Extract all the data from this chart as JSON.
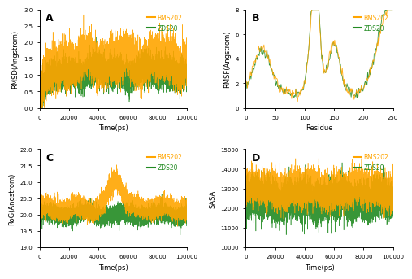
{
  "panel_labels": [
    "A",
    "B",
    "C",
    "D"
  ],
  "colors": {
    "BMS202": "#FFA500",
    "ZDS20": "#228B22"
  },
  "line_alpha": 0.9,
  "panel_A": {
    "xlabel": "Time(ps)",
    "ylabel": "RMSD(Angstrom)",
    "xlim": [
      0,
      100000
    ],
    "ylim": [
      0,
      3
    ],
    "yticks": [
      0,
      0.5,
      1.0,
      1.5,
      2.0,
      2.5,
      3.0
    ],
    "xticks": [
      0,
      20000,
      40000,
      60000,
      80000,
      100000
    ],
    "bms202_mean": 1.45,
    "bms202_std": 0.38,
    "zds20_mean": 1.1,
    "zds20_std": 0.28
  },
  "panel_B": {
    "xlabel": "Residue",
    "ylabel": "RMSF(Angstrom)",
    "xlim": [
      0,
      250
    ],
    "ylim": [
      0,
      8
    ],
    "yticks": [
      0,
      2,
      4,
      6,
      8
    ],
    "xticks": [
      0,
      50,
      100,
      150,
      200,
      250
    ]
  },
  "panel_C": {
    "xlabel": "Time(ps)",
    "ylabel": "RoG(Angstrom)",
    "xlim": [
      0,
      100000
    ],
    "ylim": [
      19,
      22
    ],
    "yticks": [
      19,
      19.5,
      20,
      20.5,
      21,
      21.5,
      22
    ],
    "xticks": [
      0,
      20000,
      40000,
      60000,
      80000,
      100000
    ],
    "bms202_mean": 20.2,
    "bms202_std": 0.18,
    "zds20_mean": 20.0,
    "zds20_std": 0.15
  },
  "panel_D": {
    "xlabel": "Time(ps)",
    "ylabel": "SASA",
    "xlim": [
      0,
      100000
    ],
    "ylim": [
      10000,
      15000
    ],
    "yticks": [
      10000,
      11000,
      12000,
      13000,
      14000,
      15000
    ],
    "xticks": [
      0,
      20000,
      40000,
      60000,
      80000,
      100000
    ],
    "bms202_mean": 13000,
    "bms202_std": 450,
    "zds20_mean": 12400,
    "zds20_std": 500
  }
}
